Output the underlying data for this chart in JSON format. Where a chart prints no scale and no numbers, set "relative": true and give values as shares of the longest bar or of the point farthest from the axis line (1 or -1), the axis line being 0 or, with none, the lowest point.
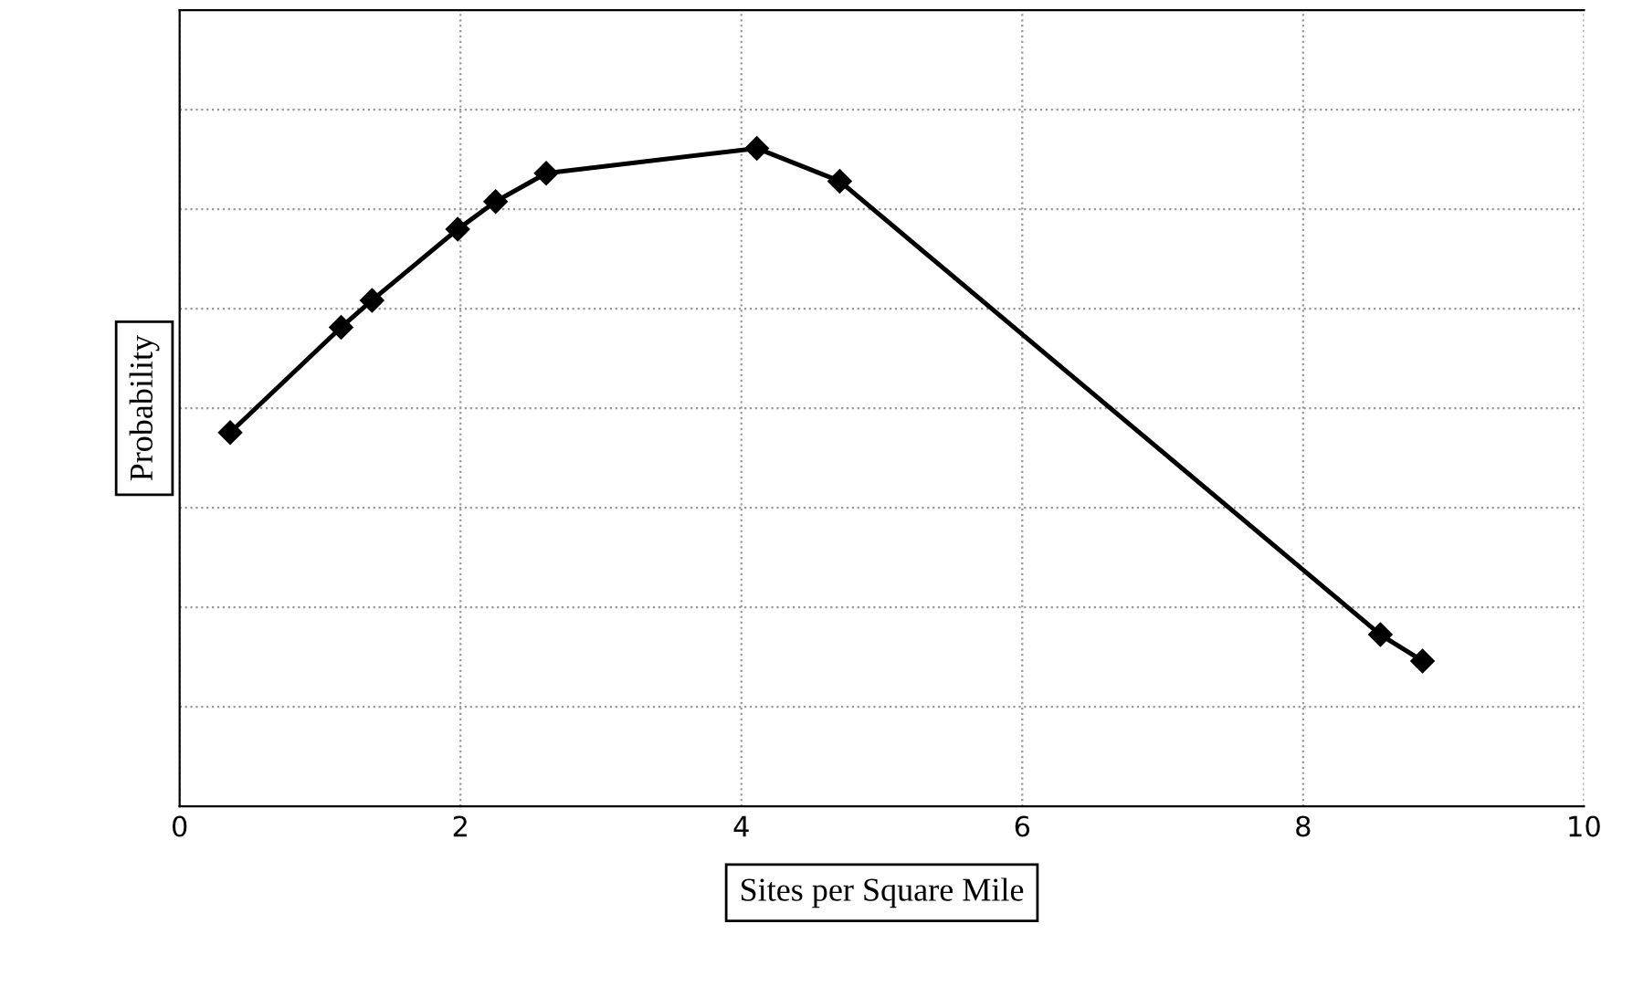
{
  "chart_data": {
    "type": "line",
    "relative": true,
    "xlabel": "Sites per Square Mile",
    "ylabel": "Probability",
    "x": [
      0.36,
      1.15,
      1.37,
      1.98,
      2.25,
      2.61,
      4.11,
      4.7,
      8.55,
      8.85
    ],
    "series": [
      {
        "color": "#000000",
        "values": [
          0.568,
          0.728,
          0.769,
          0.877,
          0.919,
          0.962,
          1,
          0.95,
          0.261,
          0.221
        ]
      }
    ],
    "xlim": [
      0,
      10
    ],
    "xticks": [
      0,
      2,
      4,
      6,
      8,
      10
    ],
    "grid": true,
    "marker": "diamond",
    "line_style": "solid",
    "tick_labels": "x"
  }
}
